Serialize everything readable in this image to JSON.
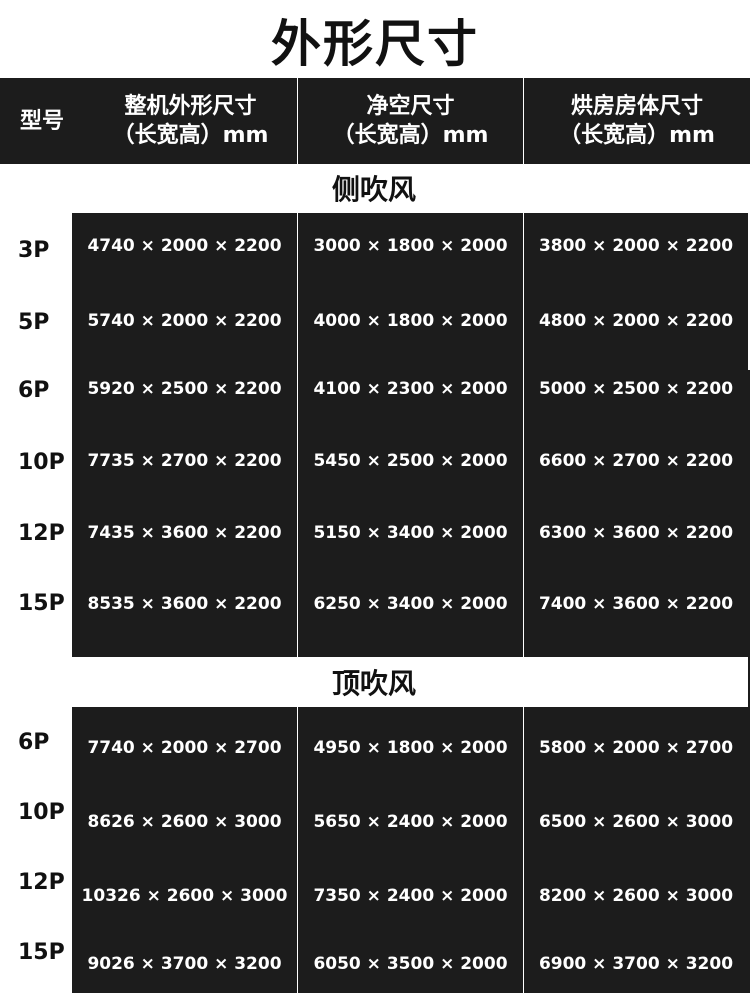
{
  "title": "外形尺寸",
  "header": {
    "model": "型号",
    "col1_line1": "整机外形尺寸",
    "col1_line2": "（长宽高）mm",
    "col2_line1": "净空尺寸",
    "col2_line2": "（长宽高）mm",
    "col3_line1": "烘房房体尺寸",
    "col3_line2": "（长宽高）mm"
  },
  "sections": [
    {
      "label": "侧吹风",
      "rows": [
        {
          "model": "3P",
          "c1": "4740 × 2000 × 2200",
          "c2": "3000 × 1800 × 2000",
          "c3": "3800 × 2000 × 2200"
        },
        {
          "model": "5P",
          "c1": "5740 × 2000 × 2200",
          "c2": "4000 × 1800 × 2000",
          "c3": "4800 × 2000 × 2200"
        },
        {
          "model": "6P",
          "c1": "5920 × 2500 × 2200",
          "c2": "4100 × 2300 × 2000",
          "c3": "5000 × 2500 × 2200"
        },
        {
          "model": "10P",
          "c1": "7735 × 2700 × 2200",
          "c2": "5450 × 2500 × 2000",
          "c3": "6600 × 2700 × 2200"
        },
        {
          "model": "12P",
          "c1": "7435 × 3600 × 2200",
          "c2": "5150 × 3400 × 2000",
          "c3": "6300 × 3600 × 2200"
        },
        {
          "model": "15P",
          "c1": "8535 × 3600 × 2200",
          "c2": "6250 × 3400 × 2000",
          "c3": "7400 × 3600 × 2200"
        }
      ]
    },
    {
      "label": "顶吹风",
      "rows": [
        {
          "model": "6P",
          "c1": "7740 × 2000 × 2700",
          "c2": "4950 × 1800 × 2000",
          "c3": "5800 × 2000 × 2700"
        },
        {
          "model": "10P",
          "c1": "8626 × 2600 × 3000",
          "c2": "5650 × 2400 × 2000",
          "c3": "6500 × 2600 × 3000"
        },
        {
          "model": "12P",
          "c1": "10326 × 2600 × 3000",
          "c2": "7350 × 2400 × 2000",
          "c3": "8200 × 2600 × 3000"
        },
        {
          "model": "15P",
          "c1": "9026 × 3700 × 3200",
          "c2": "6050 × 3500 × 2000",
          "c3": "6900 × 3700 × 3200"
        }
      ]
    }
  ]
}
